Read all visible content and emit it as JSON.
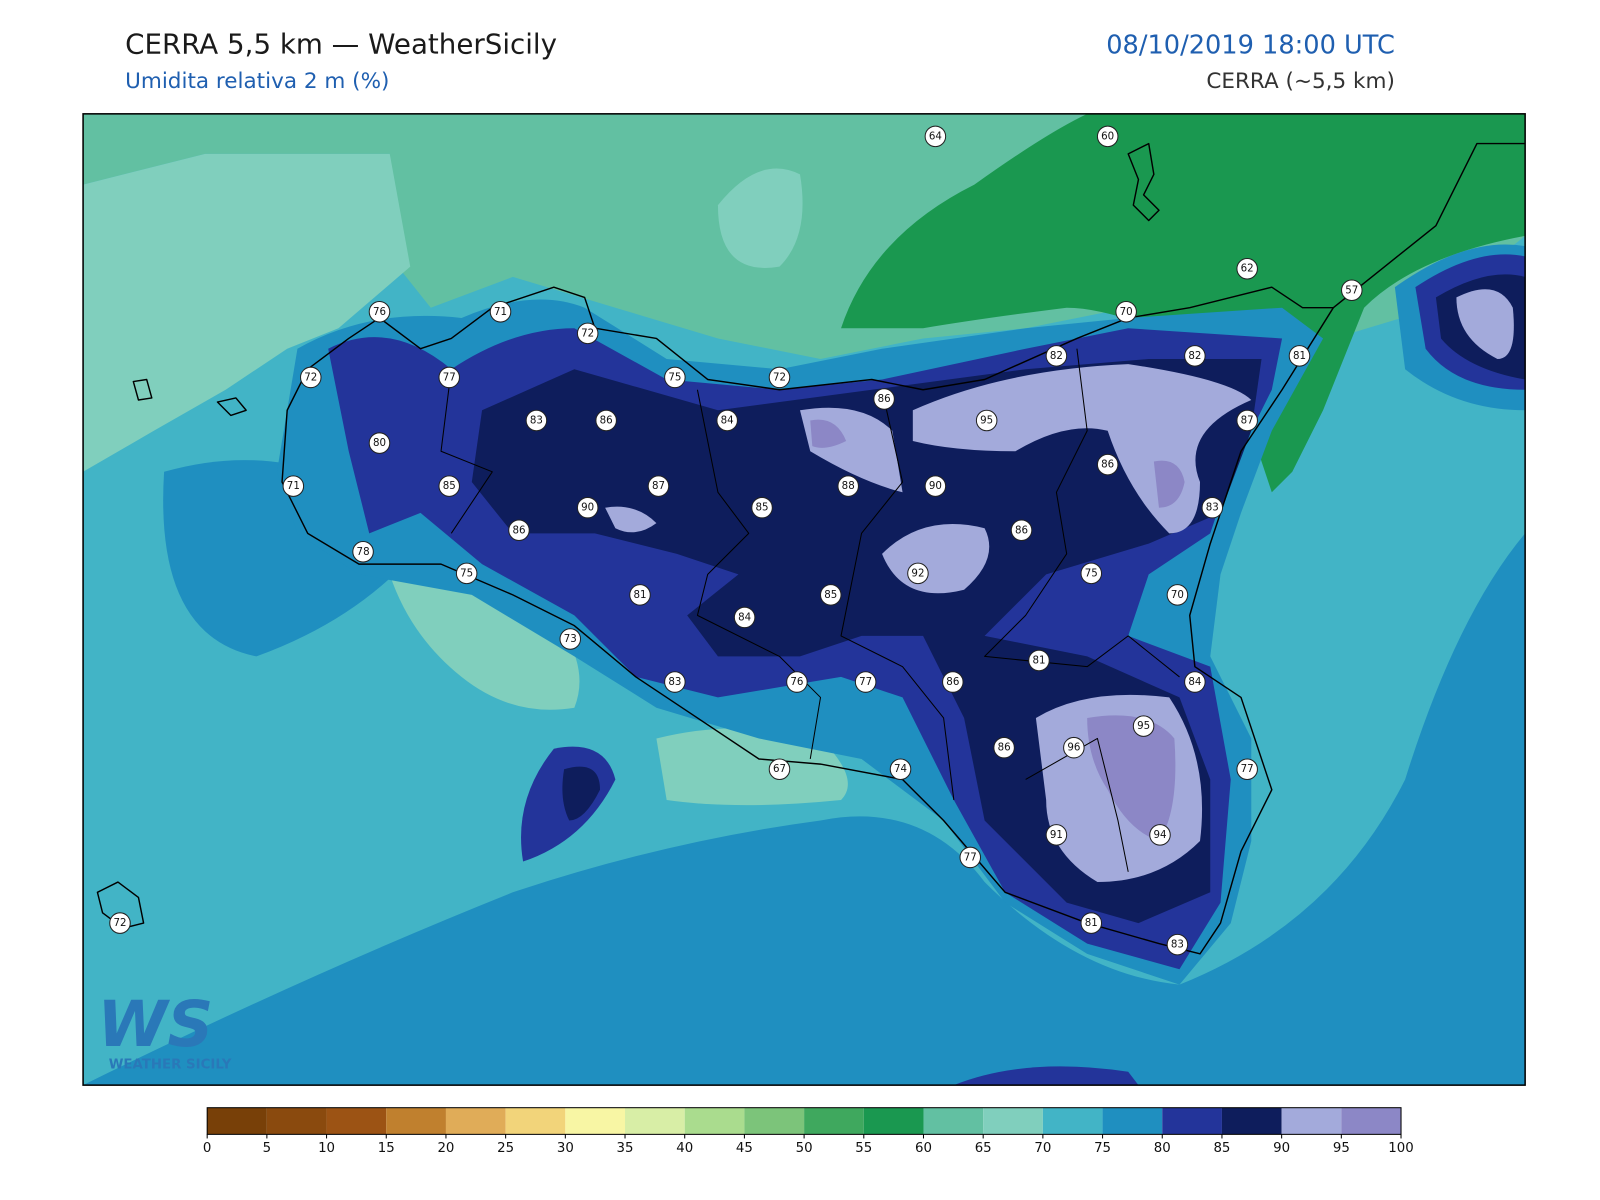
{
  "header": {
    "title": "CERRA 5,5 km — WeatherSicily",
    "subtitle": "Umidita relativa 2 m (%)",
    "datetime": "08/10/2019 18:00 UTC",
    "model": "CERRA (~5,5 km)"
  },
  "logo": {
    "mark": "WS",
    "name": "WEATHER SICILY"
  },
  "stations": [
    64,
    60,
    62,
    57,
    76,
    71,
    72,
    70,
    72,
    77,
    75,
    72,
    82,
    82,
    81,
    86,
    83,
    86,
    84,
    95,
    87,
    80,
    86,
    71,
    85,
    87,
    88,
    90,
    90,
    85,
    83,
    86,
    86,
    78,
    75,
    92,
    75,
    81,
    85,
    70,
    84,
    73,
    81,
    83,
    76,
    77,
    86,
    84,
    95,
    86,
    96,
    67,
    74,
    77,
    91,
    94,
    77,
    72,
    81,
    83
  ],
  "legend": {
    "ticks": [
      0,
      5,
      10,
      15,
      20,
      25,
      30,
      35,
      40,
      45,
      50,
      55,
      60,
      65,
      70,
      75,
      80,
      85,
      90,
      95,
      100
    ],
    "colors": [
      "#784008",
      "#8a4a0e",
      "#9c5314",
      "#c0802e",
      "#e0ac58",
      "#f2d47a",
      "#f8f6a4",
      "#d8eea6",
      "#aadc8e",
      "#7cc47a",
      "#3fa85e",
      "#1a9850",
      "#62c0a2",
      "#80cfbd",
      "#42b4c6",
      "#1f8fc0",
      "#23349a",
      "#0e1d5c",
      "#a3aadb",
      "#8c87c6"
    ]
  }
}
